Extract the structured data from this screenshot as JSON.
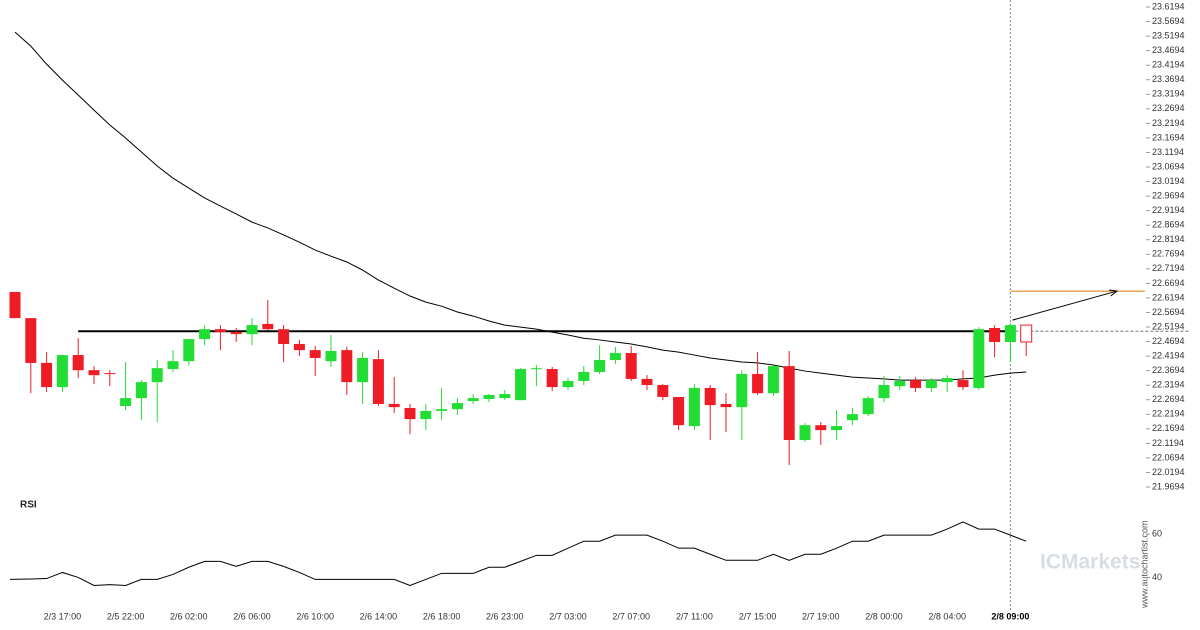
{
  "chart_data": {
    "type": "candlestick",
    "up_color": "#22dd33",
    "down_color": "#ee1c24",
    "current_candle_hollow": true,
    "categories": [
      null,
      null,
      null,
      "2/3 17:00",
      null,
      null,
      null,
      "2/5 22:00",
      null,
      null,
      null,
      "2/6 02:00",
      null,
      null,
      null,
      "2/6 06:00",
      null,
      null,
      null,
      "2/6 10:00",
      null,
      null,
      null,
      "2/6 14:00",
      null,
      null,
      null,
      "2/6 18:00",
      null,
      null,
      null,
      "2/6 23:00",
      null,
      null,
      null,
      "2/7 03:00",
      null,
      null,
      null,
      "2/7 07:00",
      null,
      null,
      null,
      "2/7 11:00",
      null,
      null,
      null,
      "2/7 15:00",
      null,
      null,
      null,
      "2/7 19:00",
      null,
      null,
      null,
      "2/8 00:00",
      null,
      null,
      null,
      "2/8 04:00",
      null,
      null,
      null,
      "2/8 09:00",
      null
    ],
    "open": [
      22.64,
      22.55,
      22.396,
      22.313,
      22.423,
      22.371,
      22.361,
      22.248,
      22.275,
      22.33,
      22.375,
      22.402,
      22.478,
      22.512,
      22.502,
      22.495,
      22.53,
      22.512,
      22.461,
      22.44,
      22.402,
      22.44,
      22.33,
      22.409,
      22.255,
      22.241,
      22.203,
      22.231,
      22.237,
      22.265,
      22.272,
      22.275,
      22.268,
      22.375,
      22.375,
      22.313,
      22.334,
      22.365,
      22.406,
      22.43,
      22.341,
      22.32,
      22.279,
      22.179,
      22.31,
      22.255,
      22.244,
      22.358,
      22.292,
      22.385,
      22.131,
      22.182,
      22.165,
      22.199,
      22.22,
      22.275,
      22.316,
      22.337,
      22.31,
      22.33,
      22.337,
      22.31,
      22.516,
      22.468,
      22.526
    ],
    "high": [
      22.64,
      22.55,
      22.433,
      22.423,
      22.481,
      22.385,
      22.371,
      22.399,
      22.337,
      22.406,
      22.44,
      22.478,
      22.526,
      22.526,
      22.516,
      22.55,
      22.612,
      22.526,
      22.475,
      22.454,
      22.492,
      22.451,
      22.433,
      22.44,
      22.347,
      22.255,
      22.255,
      22.31,
      22.275,
      22.289,
      22.289,
      22.303,
      22.378,
      22.389,
      22.382,
      22.344,
      22.385,
      22.457,
      22.451,
      22.454,
      22.354,
      22.323,
      22.279,
      22.323,
      22.32,
      22.292,
      22.371,
      22.433,
      22.385,
      22.437,
      22.189,
      22.193,
      22.234,
      22.241,
      22.282,
      22.351,
      22.351,
      22.347,
      22.344,
      22.354,
      22.371,
      22.519,
      22.526,
      22.533,
      22.526
    ],
    "low": [
      22.55,
      22.292,
      22.296,
      22.296,
      22.344,
      22.323,
      22.316,
      22.234,
      22.199,
      22.193,
      22.365,
      22.389,
      22.457,
      22.44,
      22.468,
      22.457,
      22.509,
      22.399,
      22.42,
      22.351,
      22.382,
      22.286,
      22.255,
      22.248,
      22.224,
      22.151,
      22.165,
      22.199,
      22.217,
      22.255,
      22.261,
      22.268,
      22.268,
      22.316,
      22.299,
      22.303,
      22.32,
      22.358,
      22.392,
      22.334,
      22.303,
      22.268,
      22.165,
      22.165,
      22.131,
      22.158,
      22.131,
      22.286,
      22.282,
      22.045,
      22.124,
      22.114,
      22.131,
      22.182,
      22.213,
      22.261,
      22.303,
      22.296,
      22.296,
      22.296,
      22.303,
      22.303,
      22.416,
      22.399,
      22.42
    ],
    "close": [
      22.55,
      22.396,
      22.313,
      22.423,
      22.371,
      22.354,
      22.358,
      22.275,
      22.33,
      22.378,
      22.402,
      22.478,
      22.512,
      22.502,
      22.495,
      22.526,
      22.512,
      22.461,
      22.44,
      22.413,
      22.437,
      22.33,
      22.413,
      22.255,
      22.244,
      22.203,
      22.231,
      22.237,
      22.258,
      22.275,
      22.286,
      22.289,
      22.375,
      22.378,
      22.313,
      22.334,
      22.365,
      22.406,
      22.43,
      22.341,
      22.32,
      22.279,
      22.182,
      22.31,
      22.251,
      22.244,
      22.358,
      22.292,
      22.385,
      22.131,
      22.182,
      22.165,
      22.179,
      22.22,
      22.275,
      22.32,
      22.334,
      22.31,
      22.337,
      22.344,
      22.313,
      22.512,
      22.468,
      22.526,
      22.468
    ],
    "moving_average": {
      "color": "#000000",
      "values": [
        23.533,
        23.485,
        23.423,
        23.368,
        23.317,
        23.265,
        23.214,
        23.169,
        23.121,
        23.073,
        23.031,
        22.997,
        22.963,
        22.935,
        22.908,
        22.88,
        22.86,
        22.836,
        22.811,
        22.784,
        22.763,
        22.743,
        22.715,
        22.681,
        22.653,
        22.626,
        22.605,
        22.591,
        22.571,
        22.557,
        22.54,
        22.526,
        22.519,
        22.512,
        22.502,
        22.492,
        22.481,
        22.475,
        22.468,
        22.461,
        22.451,
        22.44,
        22.433,
        22.423,
        22.413,
        22.406,
        22.399,
        22.396,
        22.389,
        22.378,
        22.368,
        22.361,
        22.354,
        22.347,
        22.344,
        22.341,
        22.337,
        22.337,
        22.337,
        22.337,
        22.341,
        22.344,
        22.354,
        22.361,
        22.365
      ]
    },
    "level": 22.505,
    "target": 22.643,
    "target_color": "#e07b00",
    "ylim": [
      21.942,
      23.6435
    ],
    "yticks": [
      21.9694,
      22.0194,
      22.0694,
      22.1194,
      22.1694,
      22.2194,
      22.2694,
      22.3194,
      22.3694,
      22.4194,
      22.4694,
      22.5194,
      22.5694,
      22.6194,
      22.6694,
      22.7194,
      22.7694,
      22.8194,
      22.8694,
      22.9194,
      22.9694,
      23.0194,
      23.0694,
      23.1194,
      23.1694,
      23.2194,
      23.2694,
      23.3194,
      23.3694,
      23.4194,
      23.4694,
      23.5194,
      23.5694,
      23.6194
    ],
    "rsi": {
      "label": "RSI",
      "color": "#000000",
      "values": [
        39.1,
        39.3,
        39.5,
        42.3,
        40.0,
        36.3,
        36.7,
        36.3,
        39.1,
        39.1,
        41.4,
        44.7,
        47.4,
        47.4,
        45.1,
        47.4,
        47.4,
        45.1,
        42.3,
        39.1,
        39.1,
        39.1,
        39.1,
        39.1,
        39.1,
        36.3,
        39.1,
        41.9,
        41.9,
        41.9,
        44.7,
        44.7,
        47.4,
        50.2,
        50.2,
        53.5,
        56.7,
        56.7,
        59.5,
        59.5,
        59.5,
        56.7,
        53.5,
        53.5,
        50.7,
        47.9,
        47.9,
        47.9,
        50.7,
        47.9,
        50.7,
        50.7,
        53.5,
        56.7,
        56.7,
        59.5,
        59.5,
        59.5,
        59.5,
        62.3,
        65.6,
        62.3,
        62.3,
        59.5,
        56.7
      ],
      "ylim": [
        25,
        78
      ],
      "yticks": [
        40,
        60
      ]
    },
    "watermark": "www.autochartist.com",
    "logo": "ICMarkets"
  }
}
